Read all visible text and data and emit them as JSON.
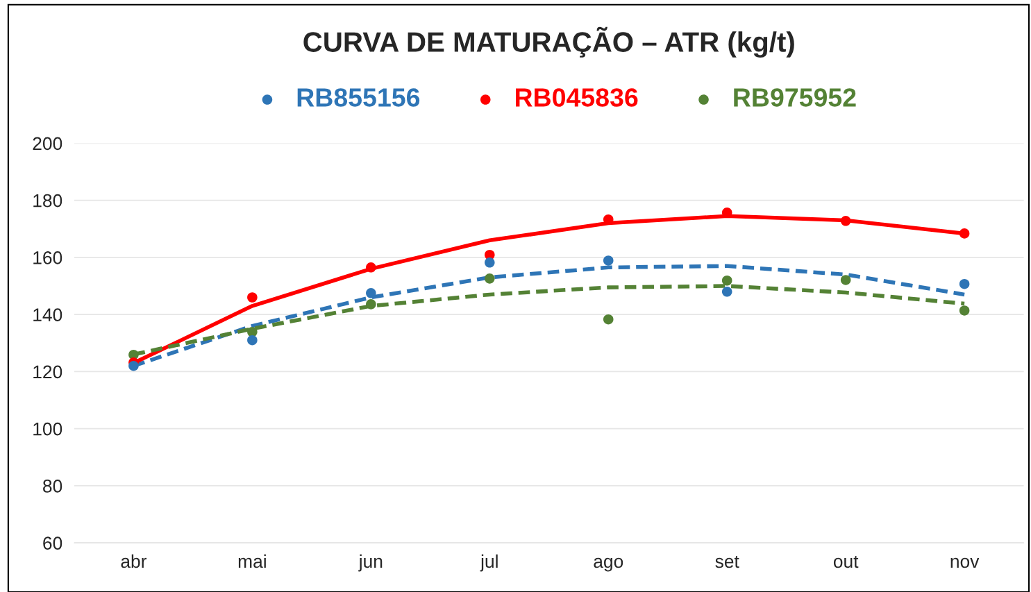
{
  "chart_data": {
    "type": "scatter",
    "title": "CURVA DE MATURAÇÃO – ATR (kg/t)",
    "categories": [
      "abr",
      "mai",
      "jun",
      "jul",
      "ago",
      "set",
      "out",
      "nov"
    ],
    "ylim": [
      60,
      200
    ],
    "yticks": [
      60,
      80,
      100,
      120,
      140,
      160,
      180,
      200
    ],
    "grid": "y",
    "legend": "top",
    "series": [
      {
        "name": "RB855156",
        "marker": "circle",
        "color": "#2e75b6",
        "values": [
          122.0,
          131.0,
          147.5,
          158.2,
          158.9,
          148.0,
          null,
          150.7
        ]
      },
      {
        "name": "RB045836",
        "marker": "circle",
        "color": "#ff0000",
        "values": [
          123.2,
          146.0,
          156.5,
          160.9,
          173.3,
          175.7,
          172.8,
          168.4
        ]
      },
      {
        "name": "RB975952",
        "marker": "circle",
        "color": "#548235",
        "values": [
          125.9,
          133.9,
          143.6,
          152.6,
          138.3,
          151.9,
          152.1,
          141.4
        ]
      },
      {
        "type": "line",
        "marker": "none",
        "color": "#2e75b6",
        "line_style": "dashed",
        "values": [
          122,
          136,
          146,
          153,
          156.5,
          157,
          154,
          147
        ]
      },
      {
        "type": "line",
        "marker": "none",
        "color": "#ff0000",
        "line_style": "solid",
        "values": [
          123,
          143,
          156,
          166,
          172,
          174.5,
          173,
          168.4
        ]
      },
      {
        "type": "line",
        "marker": "none",
        "color": "#548235",
        "line_style": "dashed",
        "values": [
          126,
          135,
          143,
          147,
          149.5,
          150,
          147.7,
          143.8
        ]
      }
    ]
  }
}
